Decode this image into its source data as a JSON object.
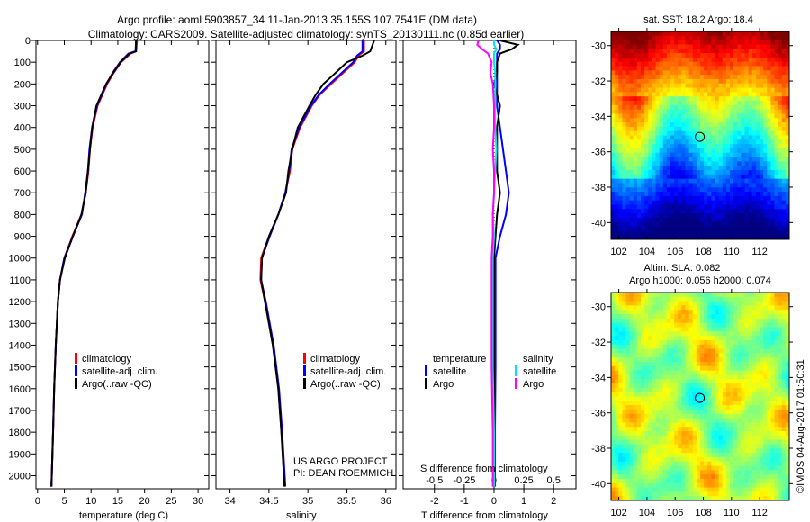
{
  "title": {
    "line1": "Argo profile: aoml 5903857_34 11-Jan-2013 35.155S 107.7541E (DM data)",
    "line2": "Climatology: CARS2009. Satellite-adjusted climatology: synTS_20130111.nc (0.85d earlier)"
  },
  "colors": {
    "climatology": "#ff0000",
    "satellite": "#0000ff",
    "argo": "#000000",
    "sal_satellite": "#00e5ee",
    "sal_argo": "#ff00ff"
  },
  "chart_data": [
    {
      "type": "line",
      "id": "temperature",
      "xlabel": "temperature (deg C)",
      "xlim": [
        -0.3,
        32
      ],
      "xticks": [
        0,
        5,
        10,
        15,
        20,
        25,
        30
      ],
      "ylim": [
        2060,
        0
      ],
      "yticks": [
        0,
        100,
        200,
        300,
        400,
        500,
        600,
        700,
        800,
        900,
        1000,
        1100,
        1200,
        1300,
        1400,
        1500,
        1600,
        1700,
        1800,
        1900,
        2000
      ],
      "legend": [
        "climatology",
        "satellite-adj. clim.",
        "Argo(..raw -QC)"
      ],
      "depth": [
        0,
        50,
        60,
        100,
        150,
        200,
        300,
        400,
        500,
        600,
        700,
        800,
        900,
        1000,
        1100,
        1200,
        1300,
        1400,
        1600,
        1800,
        2050
      ],
      "series": [
        {
          "name": "climatology",
          "values": [
            18.6,
            18.4,
            17.4,
            15.6,
            14.2,
            13.0,
            11.2,
            10.3,
            9.8,
            9.5,
            9.0,
            8.2,
            6.5,
            5.0,
            4.2,
            3.8,
            3.6,
            3.4,
            3.1,
            2.9,
            2.6
          ]
        },
        {
          "name": "satellite-adj. clim.",
          "values": [
            18.4,
            18.3,
            17.0,
            15.4,
            14.0,
            12.9,
            11.1,
            10.2,
            9.7,
            9.4,
            8.9,
            8.3,
            6.6,
            5.0,
            4.2,
            3.8,
            3.6,
            3.4,
            3.1,
            2.9,
            2.6
          ]
        },
        {
          "name": "Argo(..raw -QC)",
          "values": [
            18.4,
            18.4,
            17.2,
            15.5,
            14.1,
            12.8,
            11.0,
            10.2,
            9.8,
            9.4,
            9.0,
            8.2,
            6.6,
            5.1,
            4.2,
            3.8,
            3.6,
            3.4,
            3.1,
            2.9,
            2.6
          ]
        }
      ]
    },
    {
      "type": "line",
      "id": "salinity",
      "xlabel": "salinity",
      "xlim": [
        33.82,
        36.13
      ],
      "xticks": [
        34,
        34.5,
        35,
        35.5,
        36
      ],
      "ylim": [
        2060,
        0
      ],
      "legend": [
        "climatology",
        "satellite-adj. clim.",
        "Argo(..raw -QC)"
      ],
      "annotation": [
        "US ARGO PROJECT",
        "PI: DEAN ROEMMICH"
      ],
      "depth": [
        0,
        50,
        70,
        100,
        150,
        200,
        250,
        300,
        400,
        500,
        600,
        700,
        800,
        900,
        1000,
        1100,
        1200,
        1400,
        1600,
        1800,
        2050
      ],
      "series": [
        {
          "name": "climatology",
          "values": [
            35.72,
            35.72,
            35.65,
            35.6,
            35.45,
            35.3,
            35.15,
            35.05,
            34.9,
            34.8,
            34.77,
            34.71,
            34.62,
            34.5,
            34.4,
            34.39,
            34.45,
            34.55,
            34.62,
            34.66,
            34.7
          ]
        },
        {
          "name": "satellite-adj. clim.",
          "values": [
            35.7,
            35.7,
            35.63,
            35.58,
            35.43,
            35.28,
            35.14,
            35.04,
            34.89,
            34.79,
            34.76,
            34.71,
            34.62,
            34.51,
            34.41,
            34.4,
            34.46,
            34.56,
            34.63,
            34.67,
            34.71
          ]
        },
        {
          "name": "Argo(..raw -QC)",
          "values": [
            35.85,
            35.8,
            35.7,
            35.5,
            35.35,
            35.2,
            35.1,
            35.02,
            34.87,
            34.8,
            34.75,
            34.72,
            34.62,
            34.5,
            34.41,
            34.4,
            34.45,
            34.55,
            34.62,
            34.66,
            34.7
          ]
        }
      ]
    },
    {
      "type": "line",
      "id": "differences",
      "xlabel": "T difference from climatology",
      "xlabel2": "S difference from climatology",
      "xlim": [
        -3.05,
        2.75
      ],
      "xticks": [
        -2,
        -1,
        0,
        1,
        2
      ],
      "sticks": [
        -0.5,
        -0.25,
        0,
        0.25,
        0.5
      ],
      "slabels": [
        "-0.5",
        "-0.25",
        "0",
        "0.25",
        "0.5"
      ],
      "ylim": [
        2060,
        0
      ],
      "legend": {
        "temperature": "temperature",
        "salinity": "salinity",
        "satellite": "satellite",
        "argo": "Argo"
      },
      "depth": [
        0,
        20,
        40,
        60,
        100,
        150,
        200,
        300,
        400,
        500,
        600,
        700,
        800,
        900,
        1000,
        1200,
        1500,
        1800,
        2050
      ],
      "series": [
        {
          "name": "T satellite",
          "values": [
            0.1,
            0.2,
            0.2,
            0.1,
            0.1,
            0.1,
            0.1,
            0.1,
            0.2,
            0.3,
            0.4,
            0.5,
            0.4,
            0.2,
            0.05,
            0.05,
            0.05,
            0.03,
            0.03
          ]
        },
        {
          "name": "T Argo",
          "values": [
            0.2,
            0.8,
            0.6,
            0.2,
            0.1,
            0.1,
            0.0,
            0.2,
            0.1,
            0.1,
            0.1,
            0.2,
            0.1,
            0.05,
            0.0,
            0.0,
            0.0,
            0.0,
            0.0
          ]
        },
        {
          "name": "S satellite",
          "values": [
            0.0,
            0.0,
            0.02,
            0.0,
            0.0,
            0.01,
            0.01,
            0.01,
            0.01,
            0.02,
            0.01,
            0.0,
            -0.01,
            0.0,
            -0.01,
            -0.01,
            -0.01,
            0.0,
            0.0
          ]
        },
        {
          "name": "S Argo",
          "values": [
            -0.13,
            -0.14,
            -0.1,
            -0.05,
            -0.02,
            -0.03,
            -0.01,
            0.0,
            0.0,
            -0.01,
            0.0,
            0.0,
            -0.01,
            -0.01,
            -0.02,
            -0.02,
            -0.02,
            -0.01,
            -0.01
          ]
        }
      ]
    },
    {
      "type": "heatmap",
      "id": "sst-map",
      "title": "sat. SST: 18.2  Argo: 18.4",
      "xlim": [
        101.45,
        114.1
      ],
      "ylim": [
        -40.95,
        -29.2
      ],
      "xticks": [
        102,
        104,
        106,
        108,
        110,
        112
      ],
      "yticks": [
        -30,
        -32,
        -34,
        -36,
        -38,
        -40
      ],
      "marker": {
        "lon": 107.75,
        "lat": -35.155
      }
    },
    {
      "type": "heatmap",
      "id": "sla-map",
      "title": "Altim. SLA: 0.082",
      "subtitle": "Argo h1000: 0.056 h2000: 0.074",
      "xlim": [
        101.45,
        114.1
      ],
      "ylim": [
        -40.95,
        -29.2
      ],
      "xticks": [
        102,
        104,
        106,
        108,
        110,
        112
      ],
      "yticks": [
        -30,
        -32,
        -34,
        -36,
        -38,
        -40
      ],
      "marker": {
        "lon": 107.75,
        "lat": -35.155
      }
    }
  ],
  "credit": "©IMOS 04-Aug-2017 01:50:31"
}
